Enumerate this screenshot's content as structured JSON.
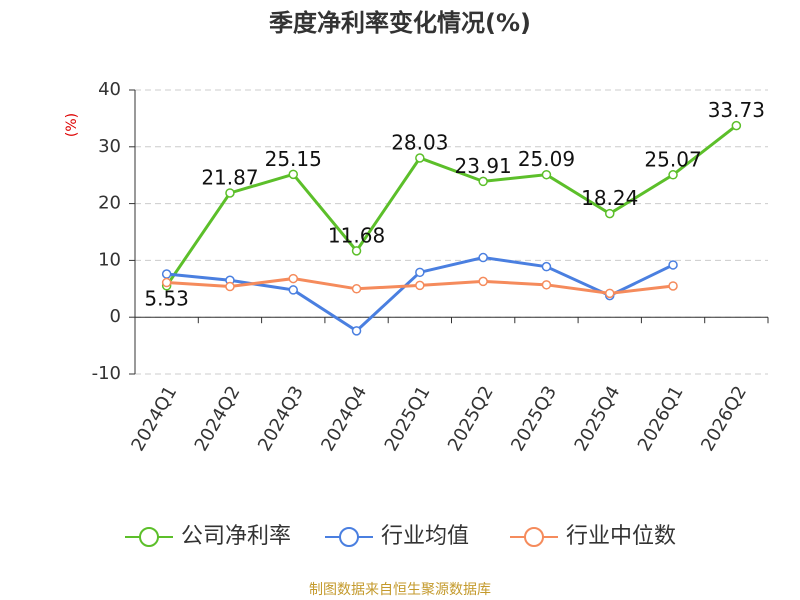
{
  "chart_data": {
    "type": "line",
    "title": "季度净利率变化情况(%)",
    "y_label": "(%)",
    "source": "制图数据来自恒生聚源数据库",
    "categories": [
      "2024Q1",
      "2024Q2",
      "2024Q3",
      "2024Q4",
      "2025Q1",
      "2025Q2",
      "2025Q3",
      "2025Q4",
      "2026Q1",
      "2026Q2"
    ],
    "series": [
      {
        "name": "公司净利率",
        "color": "#5cbf2a",
        "values": [
          5.53,
          21.87,
          25.15,
          11.68,
          28.03,
          23.91,
          25.09,
          18.24,
          25.07,
          33.73
        ],
        "show_labels": true
      },
      {
        "name": "行业均值",
        "color": "#4a7fe0",
        "values": [
          7.6,
          6.5,
          4.8,
          -2.4,
          7.9,
          10.5,
          8.9,
          3.8,
          9.2,
          null
        ],
        "show_labels": false
      },
      {
        "name": "行业中位数",
        "color": "#f58b5c",
        "values": [
          6.1,
          5.4,
          6.8,
          5.0,
          5.6,
          6.3,
          5.7,
          4.2,
          5.5,
          null
        ],
        "show_labels": false
      }
    ],
    "ylim": [
      -10,
      40
    ],
    "yticks": [
      -10,
      0,
      10,
      20,
      30,
      40
    ],
    "grid": true
  }
}
